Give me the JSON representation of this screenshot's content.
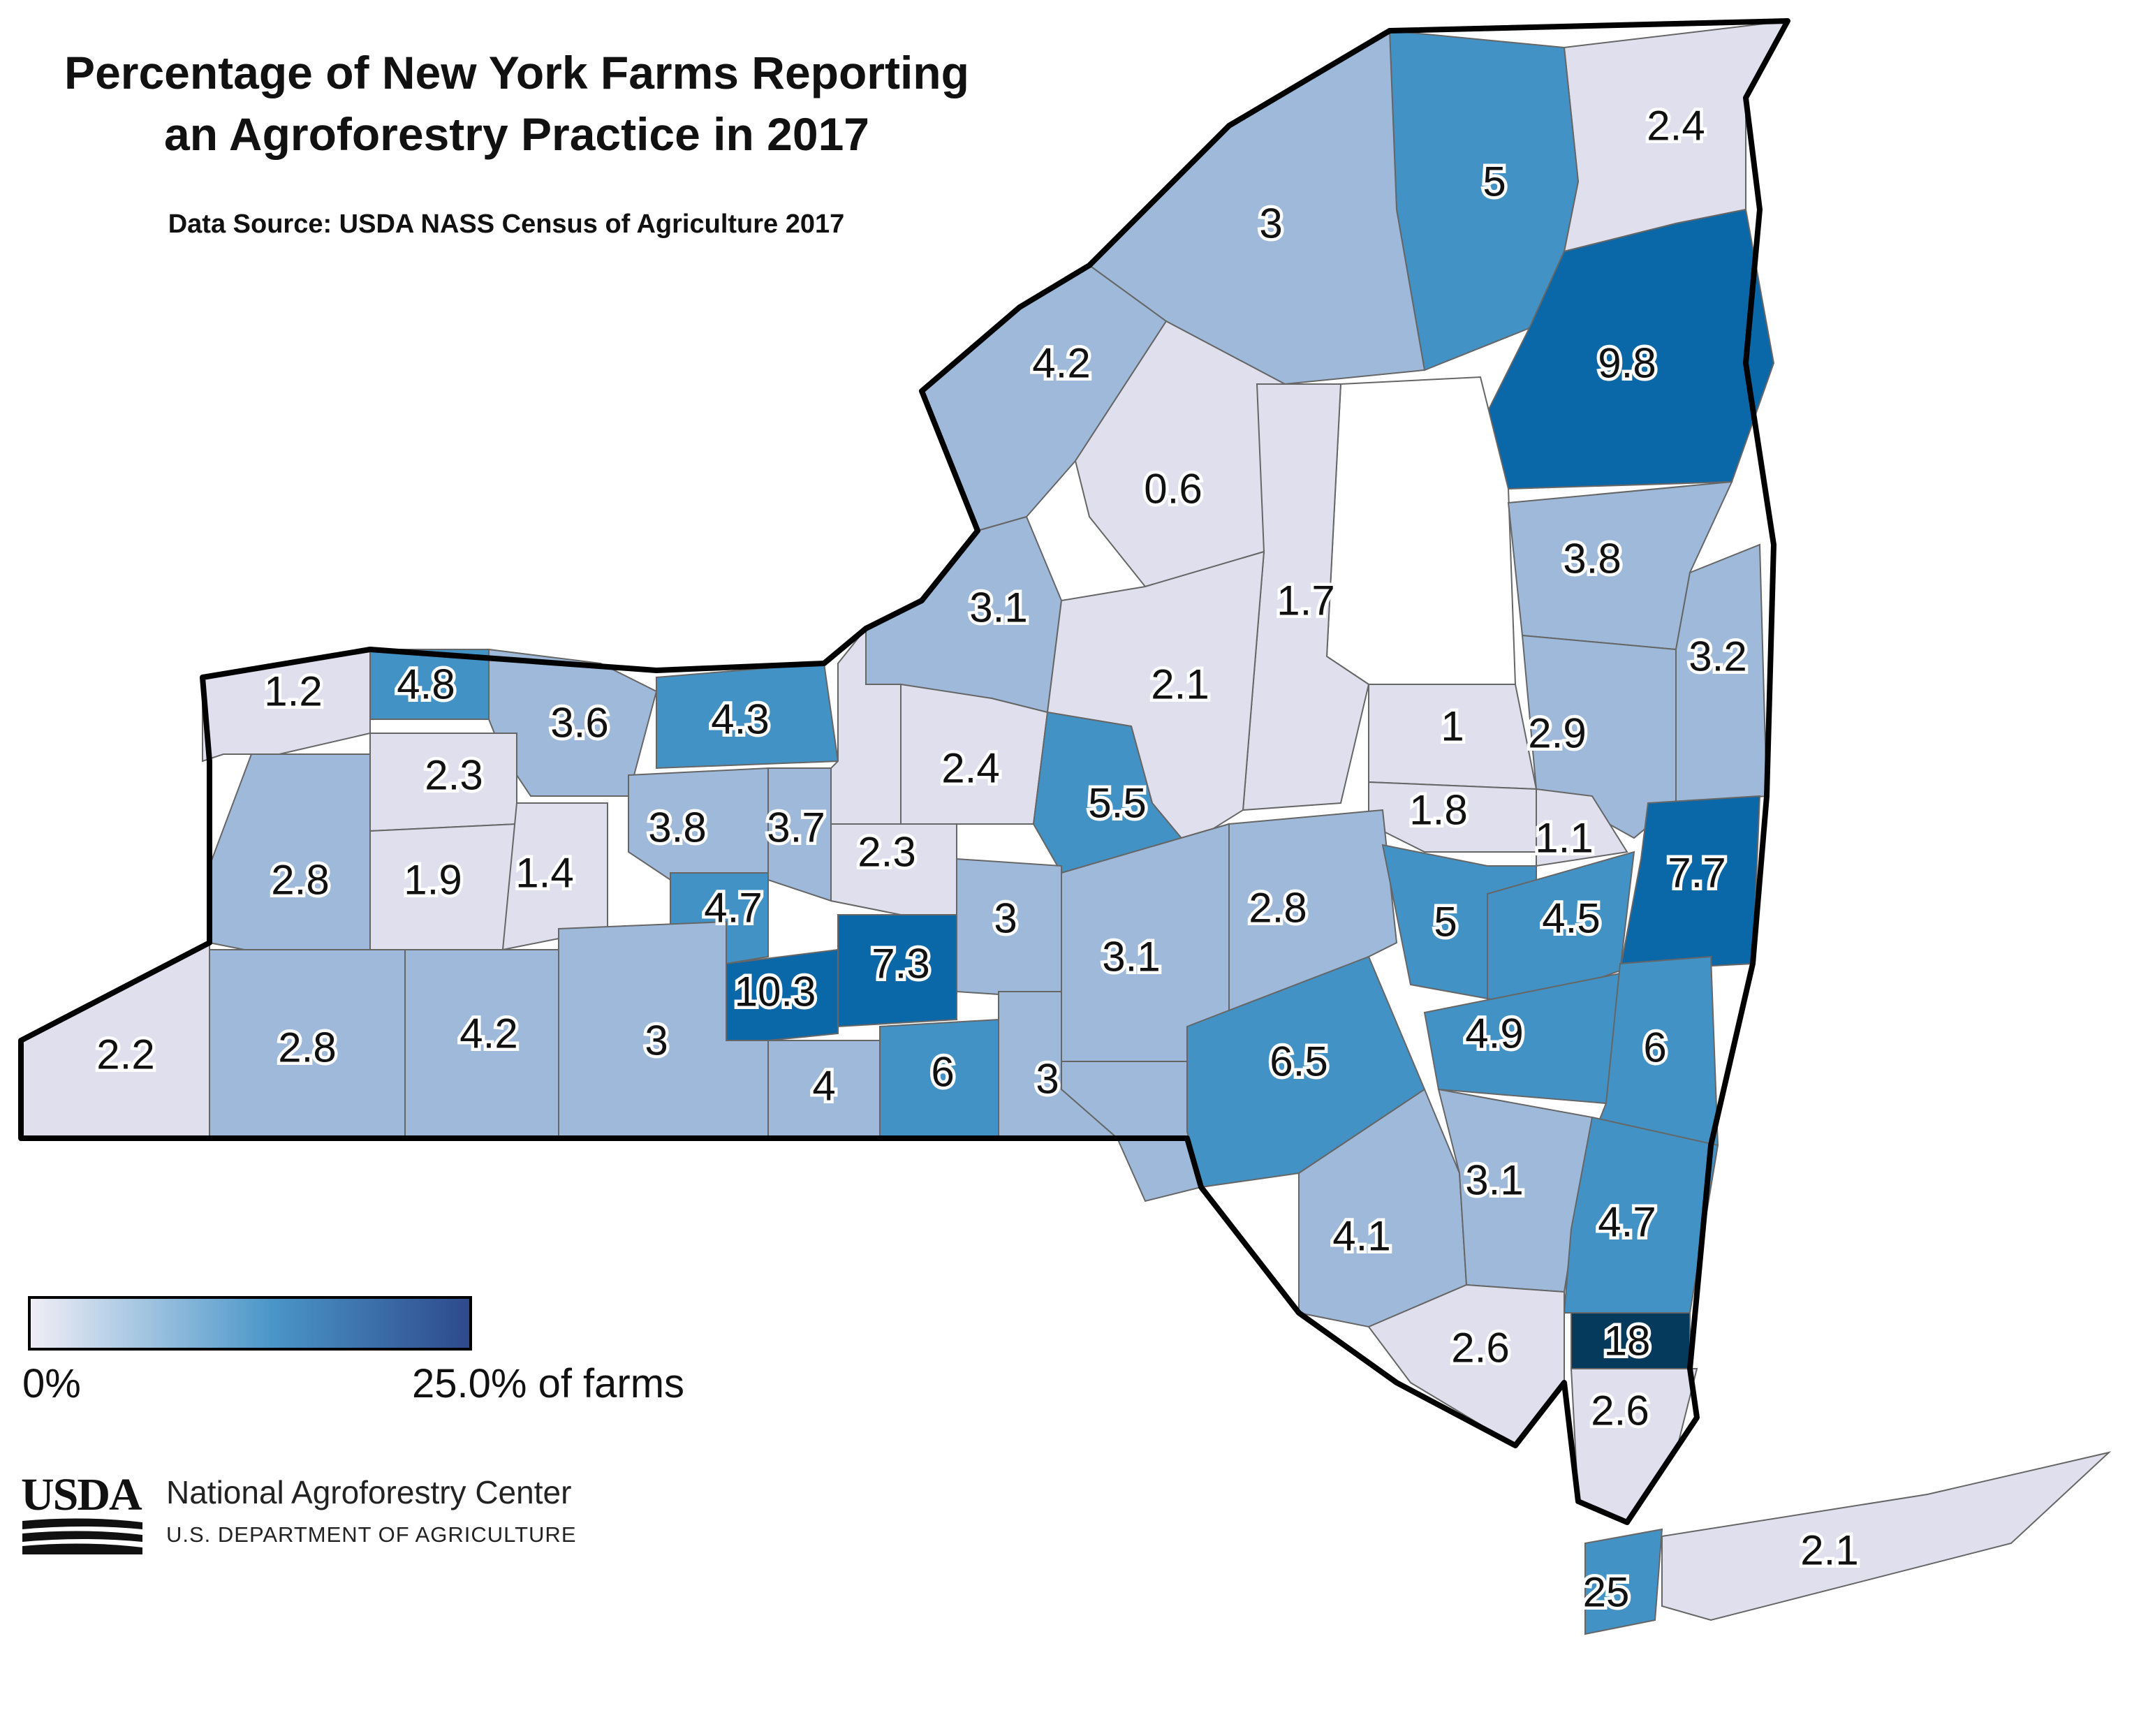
{
  "title_line1": "Percentage of New York Farms Reporting",
  "title_line2": "an Agroforestry Practice in 2017",
  "source": "Data Source: USDA NASS Census of Agriculture 2017",
  "legend": {
    "min_label": "0%",
    "max_label": "25.0% of farms",
    "min_value": 0,
    "max_value": 25.0,
    "color_start": "#f0eef6",
    "color_mid": "#4a96c8",
    "color_end": "#2e4a8c"
  },
  "org": {
    "logo_text": "USDA",
    "name": "National Agroforestry Center",
    "department": "U.S. DEPARTMENT OF AGRICULTURE"
  },
  "colors": {
    "class1": "#e0dfee",
    "class2": "#9eb9da",
    "class3": "#4292c6",
    "class4": "#0a67a8",
    "class5": "#063a5c",
    "no_data": "#ffffff",
    "border": "#000000",
    "county_line": "#666666"
  },
  "counties": [
    {
      "value": "2.4"
    },
    {
      "value": "5"
    },
    {
      "value": "3"
    },
    {
      "value": "9.8"
    },
    {
      "value": "4.2"
    },
    {
      "value": "0.6"
    },
    {
      "value": "3.8"
    },
    {
      "value": "1.7"
    },
    {
      "value": "3.1"
    },
    {
      "value": "3.2"
    },
    {
      "value": "2.1"
    },
    {
      "value": "1.2"
    },
    {
      "value": "4.8"
    },
    {
      "value": "3.6"
    },
    {
      "value": "4.3"
    },
    {
      "value": "1"
    },
    {
      "value": "2.9"
    },
    {
      "value": "2.4"
    },
    {
      "value": "2.3"
    },
    {
      "value": "5.5"
    },
    {
      "value": "1.8"
    },
    {
      "value": "3.8"
    },
    {
      "value": "3.7"
    },
    {
      "value": "1.1"
    },
    {
      "value": "7.7"
    },
    {
      "value": "2.8"
    },
    {
      "value": "1.9"
    },
    {
      "value": "1.4"
    },
    {
      "value": "2.3"
    },
    {
      "value": "2.8"
    },
    {
      "value": "4.7"
    },
    {
      "value": "3"
    },
    {
      "value": "5"
    },
    {
      "value": "4.5"
    },
    {
      "value": "7.3"
    },
    {
      "value": "3.1"
    },
    {
      "value": "10.3"
    },
    {
      "value": "6.5"
    },
    {
      "value": "4.9"
    },
    {
      "value": "6"
    },
    {
      "value": "2.2"
    },
    {
      "value": "2.8"
    },
    {
      "value": "4.2"
    },
    {
      "value": "3"
    },
    {
      "value": "4"
    },
    {
      "value": "6"
    },
    {
      "value": "3"
    },
    {
      "value": "3.1"
    },
    {
      "value": "4.1"
    },
    {
      "value": "4.7"
    },
    {
      "value": "2.6"
    },
    {
      "value": "18"
    },
    {
      "value": "2.6"
    },
    {
      "value": "25"
    },
    {
      "value": "2.1"
    }
  ]
}
